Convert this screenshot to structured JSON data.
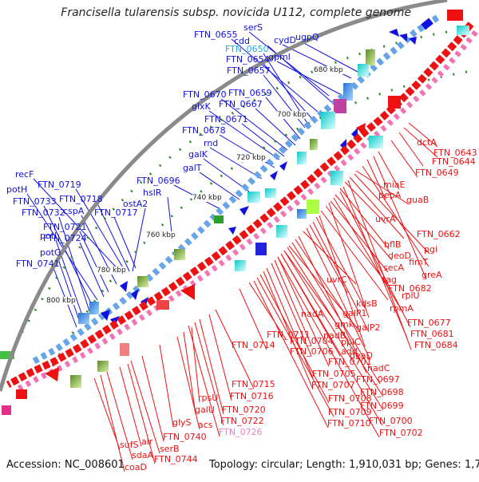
{
  "title": "Francisella tularensis subsp. novicida U112, complete genome",
  "footer": {
    "accession_label": "Accession:",
    "accession": "NC_008601",
    "topology_label": "Topology:",
    "topology": "circular;",
    "length_label": "Length:",
    "length": "1,910,031 bp;",
    "genes_label": "Genes:",
    "genes": "1,767"
  },
  "colors": {
    "forward_strand": "#1010e0",
    "reverse_strand": "#ee1111",
    "backbone": "#808080",
    "tick_dots": "#2a8a2a",
    "highlight_blue": "#22aaee",
    "highlight_pink": "#f080c0"
  },
  "scale_ticks": [
    "680 kbp",
    "700 kbp",
    "720 kbp",
    "740 kbp",
    "760 kbp",
    "780 kbp",
    "800 kbp"
  ],
  "blue_labels": [
    "FTN_0655",
    "serS",
    "cdd",
    "cydD",
    "ugpQ",
    "FTN_0650",
    "FTN_0654",
    "gpmI",
    "FTN_0657",
    "FTN_0670",
    "FTN_0659",
    "glxK",
    "FTN_0667",
    "FTN_0671",
    "FTN_0678",
    "rnd",
    "galK",
    "galT",
    "FTN_0696",
    "hslR",
    "ostA2",
    "recF",
    "FTN_0719",
    "potH",
    "FTN_0718",
    "FTN_0733",
    "cspA",
    "FTN_0717",
    "FTN_0732",
    "FTN_0721",
    "potI",
    "FTN_0724",
    "potG",
    "FTN_0741"
  ],
  "red_labels": [
    "dctA",
    "FTN_0643",
    "FTN_0644",
    "FTN_0649",
    "miaE",
    "pepA",
    "guaB",
    "uvrA",
    "FTN_0662",
    "hflB",
    "pgi",
    "deoD",
    "fimT",
    "secA",
    "greA",
    "tag",
    "uvrC",
    "FTN_0682",
    "rplU",
    "kdsB",
    "rpmA",
    "nadA",
    "galP1",
    "FTN_0677",
    "gmk",
    "galP2",
    "FTN_0681",
    "nadB",
    "ppiC",
    "FTN_0684",
    "FTN_0711",
    "FTN_0704",
    "add",
    "FTN_0714",
    "FTN_0706",
    "deaD",
    "FTN_0701",
    "nadC",
    "FTN_0705",
    "FTN_0697",
    "FTN_0707",
    "FTN_0698",
    "FTN_0715",
    "FTN_0708",
    "FTN_0699",
    "FTN_0716",
    "rpsU",
    "FTN_0709",
    "FTN_0700",
    "FTN_0720",
    "galU",
    "FTN_0710",
    "FTN_0702",
    "FTN_0722",
    "acs",
    "FTN_0726",
    "glyS",
    "FTN_0740",
    "sufS",
    "alr",
    "serB",
    "sdaA",
    "FTN_0744",
    "coaD"
  ]
}
